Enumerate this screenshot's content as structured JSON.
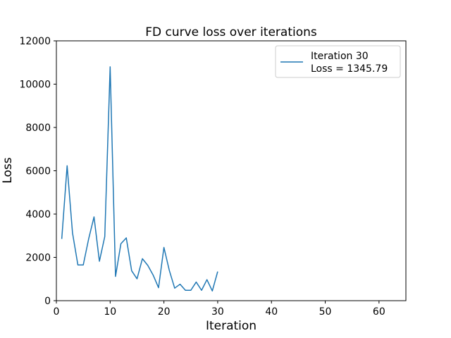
{
  "chart_data": {
    "type": "line",
    "title": "FD curve loss over iterations",
    "xlabel": "Iteration",
    "ylabel": "Loss",
    "xlim": [
      0,
      65
    ],
    "ylim": [
      0,
      12000
    ],
    "xticks": [
      0,
      10,
      20,
      30,
      40,
      50,
      60
    ],
    "yticks": [
      0,
      2000,
      4000,
      6000,
      8000,
      10000,
      12000
    ],
    "grid": false,
    "legend_position": "top-right",
    "series": [
      {
        "name": "Iteration 30",
        "legend_lines": [
          "Iteration 30",
          "Loss = 1345.79"
        ],
        "color": "#1f77b4",
        "x": [
          1,
          2,
          3,
          4,
          5,
          6,
          7,
          8,
          9,
          10,
          11,
          12,
          13,
          14,
          15,
          16,
          17,
          18,
          19,
          20,
          21,
          22,
          23,
          24,
          25,
          26,
          27,
          28,
          29,
          30
        ],
        "y": [
          2850,
          6230,
          3130,
          1650,
          1650,
          2850,
          3870,
          1820,
          2960,
          10800,
          1120,
          2630,
          2900,
          1380,
          1010,
          1940,
          1630,
          1180,
          600,
          2460,
          1400,
          580,
          760,
          480,
          480,
          860,
          480,
          970,
          450,
          1345.79
        ]
      }
    ]
  }
}
